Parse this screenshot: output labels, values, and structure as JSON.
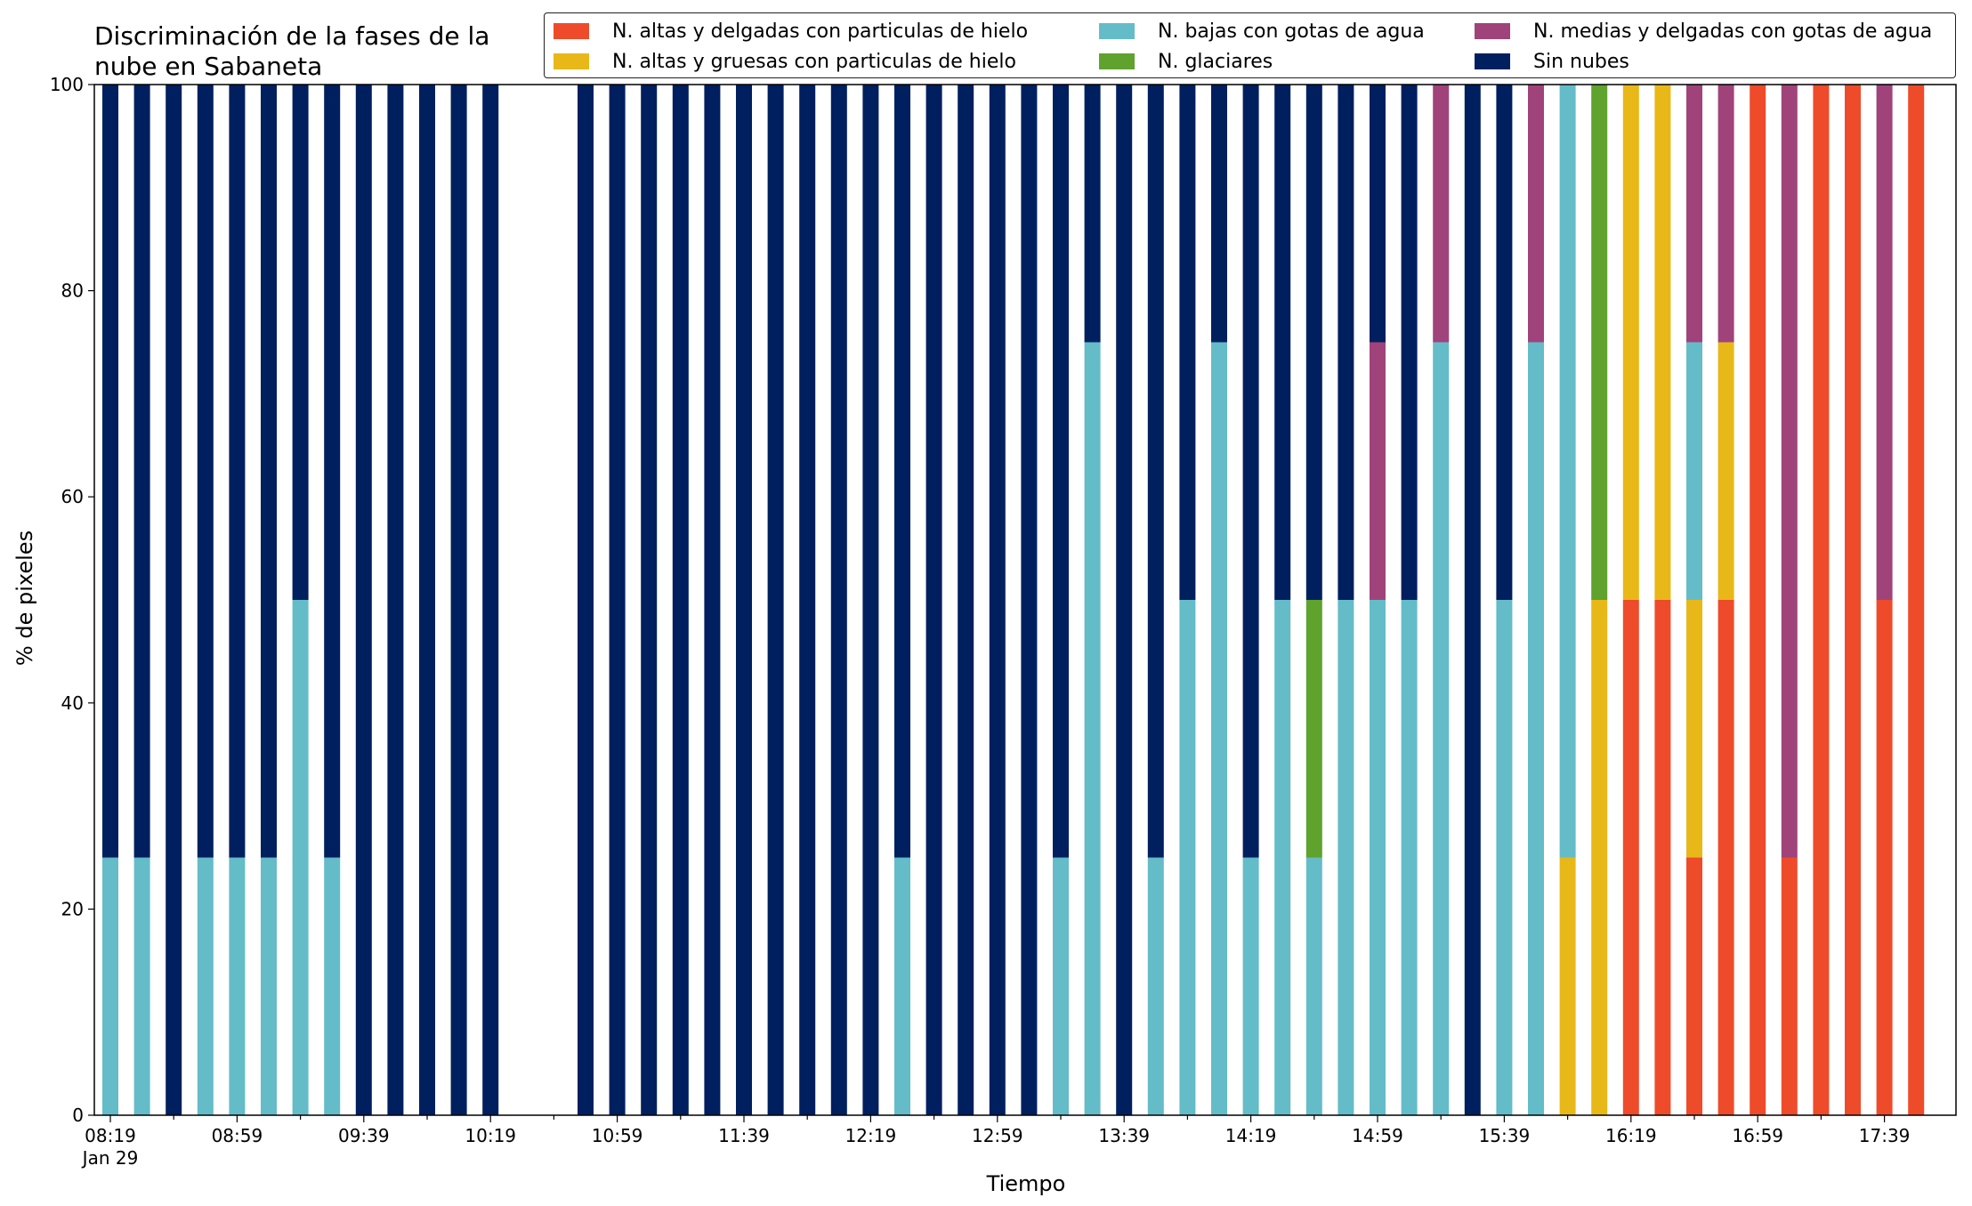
{
  "chart_data": {
    "type": "bar",
    "stacked": true,
    "title": "Discriminación de la fases de la\nnube en Sabaneta",
    "title_lines": [
      "Discriminación de la fases de la",
      "nube en Sabaneta"
    ],
    "xlabel": "Tiempo",
    "ylabel": "% de pixeles",
    "ylim": [
      0,
      100
    ],
    "yticks": [
      0,
      20,
      40,
      60,
      80,
      100
    ],
    "grid": false,
    "legend_position": "top-right",
    "x_start": "08:19",
    "x_interval_minutes": 10,
    "x_tick_labels": [
      "08:19",
      "08:59",
      "09:39",
      "10:19",
      "10:59",
      "11:39",
      "12:19",
      "12:59",
      "13:39",
      "14:19",
      "14:59",
      "15:39",
      "16:19",
      "16:59",
      "17:39"
    ],
    "x_date_label": "Jan 29",
    "categories": [
      "08:19",
      "08:29",
      "08:39",
      "08:49",
      "08:59",
      "09:09",
      "09:19",
      "09:29",
      "09:39",
      "09:49",
      "09:59",
      "10:09",
      "10:19",
      "10:29",
      "10:39",
      "10:49",
      "10:59",
      "11:09",
      "11:19",
      "11:29",
      "11:39",
      "11:49",
      "11:59",
      "12:09",
      "12:19",
      "12:29",
      "12:39",
      "12:49",
      "12:59",
      "13:09",
      "13:19",
      "13:29",
      "13:39",
      "13:49",
      "13:59",
      "14:09",
      "14:19",
      "14:29",
      "14:39",
      "14:49",
      "14:59",
      "15:09",
      "15:19",
      "15:29",
      "15:39",
      "15:49",
      "15:59",
      "16:09",
      "16:19",
      "16:29",
      "16:39",
      "16:49",
      "16:59",
      "17:09",
      "17:19",
      "17:29",
      "17:39",
      "17:49"
    ],
    "series": [
      {
        "name": "N. altas y delgadas con particulas de hielo",
        "color": "#ee4b2b",
        "values": [
          0,
          0,
          0,
          0,
          0,
          0,
          0,
          0,
          0,
          0,
          0,
          0,
          0,
          null,
          null,
          0,
          0,
          0,
          0,
          0,
          0,
          0,
          0,
          0,
          0,
          0,
          0,
          0,
          0,
          0,
          0,
          0,
          0,
          0,
          0,
          0,
          0,
          0,
          0,
          0,
          0,
          0,
          0,
          0,
          0,
          0,
          0,
          0,
          50,
          50,
          25,
          50,
          100,
          25,
          100,
          100,
          50,
          100
        ]
      },
      {
        "name": "N. altas y gruesas con particulas de hielo",
        "color": "#e8b818",
        "values": [
          0,
          0,
          0,
          0,
          0,
          0,
          0,
          0,
          0,
          0,
          0,
          0,
          0,
          null,
          null,
          0,
          0,
          0,
          0,
          0,
          0,
          0,
          0,
          0,
          0,
          0,
          0,
          0,
          0,
          0,
          0,
          0,
          0,
          0,
          0,
          0,
          0,
          0,
          0,
          0,
          0,
          0,
          0,
          0,
          0,
          0,
          25,
          50,
          50,
          50,
          25,
          25,
          0,
          0,
          0,
          0,
          0,
          0
        ]
      },
      {
        "name": "N. bajas con gotas de agua",
        "color": "#64bcc8",
        "values": [
          25,
          25,
          0,
          25,
          25,
          25,
          50,
          25,
          0,
          0,
          0,
          0,
          0,
          null,
          null,
          0,
          0,
          0,
          0,
          0,
          0,
          0,
          0,
          0,
          0,
          25,
          0,
          0,
          0,
          0,
          25,
          75,
          0,
          25,
          50,
          75,
          25,
          50,
          25,
          50,
          50,
          50,
          75,
          0,
          50,
          75,
          75,
          0,
          0,
          0,
          25,
          0,
          0,
          0,
          0,
          0,
          0,
          0
        ]
      },
      {
        "name": "N. glaciares",
        "color": "#5fa22d",
        "values": [
          0,
          0,
          0,
          0,
          0,
          0,
          0,
          0,
          0,
          0,
          0,
          0,
          0,
          null,
          null,
          0,
          0,
          0,
          0,
          0,
          0,
          0,
          0,
          0,
          0,
          0,
          0,
          0,
          0,
          0,
          0,
          0,
          0,
          0,
          0,
          0,
          0,
          0,
          25,
          0,
          0,
          0,
          0,
          0,
          0,
          0,
          0,
          50,
          0,
          0,
          0,
          0,
          0,
          0,
          0,
          0,
          0,
          0
        ]
      },
      {
        "name": "N. medias y delgadas con gotas de agua",
        "color": "#a0437a",
        "values": [
          0,
          0,
          0,
          0,
          0,
          0,
          0,
          0,
          0,
          0,
          0,
          0,
          0,
          null,
          null,
          0,
          0,
          0,
          0,
          0,
          0,
          0,
          0,
          0,
          0,
          0,
          0,
          0,
          0,
          0,
          0,
          0,
          0,
          0,
          0,
          0,
          0,
          0,
          0,
          0,
          25,
          0,
          25,
          0,
          0,
          25,
          0,
          0,
          0,
          0,
          25,
          25,
          0,
          75,
          0,
          0,
          50,
          0
        ]
      },
      {
        "name": "Sin nubes",
        "color": "#001f5f",
        "values": [
          75,
          75,
          100,
          75,
          75,
          75,
          50,
          75,
          100,
          100,
          100,
          100,
          100,
          null,
          null,
          100,
          100,
          100,
          100,
          100,
          100,
          100,
          100,
          100,
          100,
          75,
          100,
          100,
          100,
          100,
          75,
          25,
          100,
          75,
          50,
          25,
          75,
          50,
          50,
          50,
          25,
          50,
          0,
          100,
          50,
          0,
          0,
          0,
          0,
          0,
          0,
          0,
          0,
          0,
          0,
          0,
          0,
          0
        ]
      }
    ]
  }
}
